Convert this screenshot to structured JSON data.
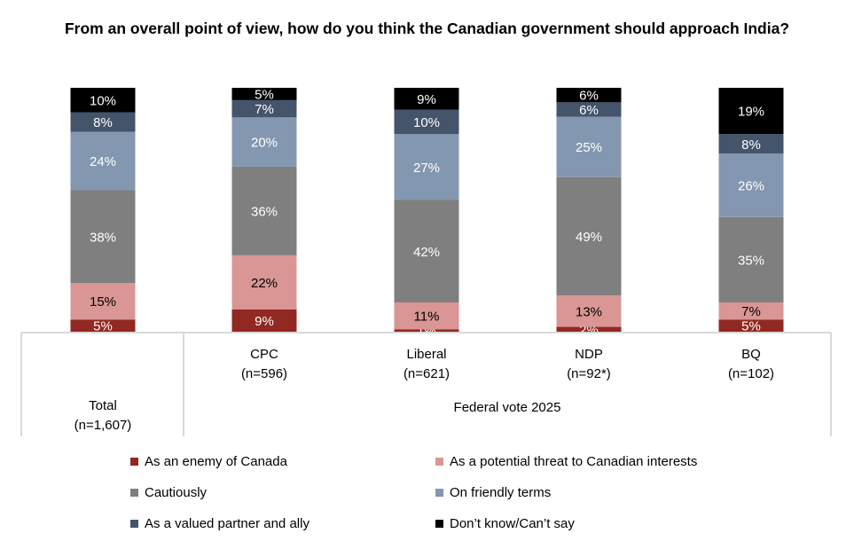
{
  "chart_data": {
    "type": "bar",
    "stacked": true,
    "title": "From an overall point of view, how do you think the Canadian government should approach India?",
    "categories": [
      {
        "name": "Total",
        "n": "(n=1,607)"
      },
      {
        "name": "CPC",
        "n": "(n=596)"
      },
      {
        "name": "Liberal",
        "n": "(n=621)"
      },
      {
        "name": "NDP",
        "n": "(n=92*)"
      },
      {
        "name": "BQ",
        "n": "(n=102)"
      }
    ],
    "group_label": "Federal vote 2025",
    "series": [
      {
        "name": "As an enemy of Canada",
        "color": "#922822",
        "label_color": "#ffffff",
        "values": [
          5,
          9,
          1,
          2,
          5
        ]
      },
      {
        "name": "As a potential threat to Canadian interests",
        "color": "#d99694",
        "label_color": "#000000",
        "values": [
          15,
          22,
          11,
          13,
          7
        ]
      },
      {
        "name": "Cautiously",
        "color": "#7f7f7f",
        "label_color": "#ffffff",
        "values": [
          38,
          36,
          42,
          49,
          35
        ]
      },
      {
        "name": "On friendly terms",
        "color": "#8497b0",
        "label_color": "#ffffff",
        "values": [
          24,
          20,
          27,
          25,
          26
        ]
      },
      {
        "name": "As a valued partner and ally",
        "color": "#44546a",
        "label_color": "#ffffff",
        "values": [
          8,
          7,
          10,
          6,
          8
        ]
      },
      {
        "name": "Don’t know/Can’t say",
        "color": "#000000",
        "label_color": "#ffffff",
        "values": [
          10,
          5,
          9,
          6,
          19
        ]
      }
    ],
    "value_suffix": "%",
    "legend_position": "bottom",
    "grid": false
  }
}
